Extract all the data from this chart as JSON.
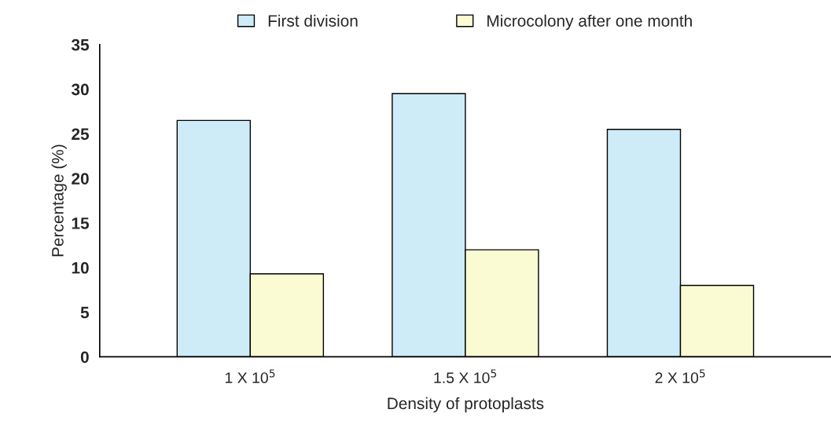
{
  "chart_data": {
    "type": "bar",
    "categories": [
      "1 X 10$^{5}$",
      "1.5 X 10$^{5}$",
      "2 X 10$^{5}$"
    ],
    "series": [
      {
        "name": "First division",
        "color": "#cdecf8",
        "values": [
          26.5,
          29.5,
          25.5
        ]
      },
      {
        "name": "Microcolony after one month",
        "color": "#fbfbd3",
        "values": [
          9.3,
          12.0,
          8.0
        ]
      }
    ],
    "xlabel": "Density of protoplasts",
    "ylabel": "Percentage (%)",
    "ylim": [
      0,
      35
    ],
    "yticks": [
      0,
      5,
      10,
      15,
      20,
      25,
      30,
      35
    ],
    "grid": false,
    "legend": "top"
  }
}
